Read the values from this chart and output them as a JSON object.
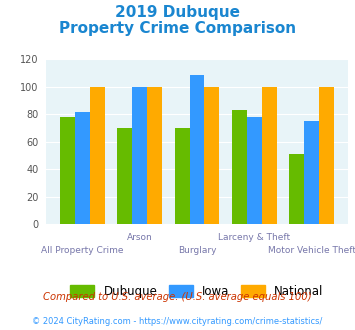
{
  "title_line1": "2019 Dubuque",
  "title_line2": "Property Crime Comparison",
  "categories": [
    "All Property Crime",
    "Arson",
    "Burglary",
    "Larceny & Theft",
    "Motor Vehicle Theft"
  ],
  "x_labels_row1": [
    "",
    "Arson",
    "",
    "Larceny & Theft",
    ""
  ],
  "x_labels_row2": [
    "All Property Crime",
    "",
    "Burglary",
    "",
    "Motor Vehicle Theft"
  ],
  "dubuque_values": [
    78,
    70,
    70,
    83,
    51
  ],
  "iowa_values": [
    82,
    100,
    109,
    78,
    75
  ],
  "national_values": [
    100,
    100,
    100,
    100,
    100
  ],
  "dubuque_color": "#66bb00",
  "iowa_color": "#3399ff",
  "national_color": "#ffaa00",
  "title_color": "#1a86d0",
  "bg_color": "#e8f4f8",
  "ylim": [
    0,
    120
  ],
  "yticks": [
    0,
    20,
    40,
    60,
    80,
    100,
    120
  ],
  "legend_labels": [
    "Dubuque",
    "Iowa",
    "National"
  ],
  "footnote1": "Compared to U.S. average. (U.S. average equals 100)",
  "footnote2": "© 2024 CityRating.com - https://www.cityrating.com/crime-statistics/",
  "footnote1_color": "#cc3300",
  "footnote2_color": "#3399ff"
}
